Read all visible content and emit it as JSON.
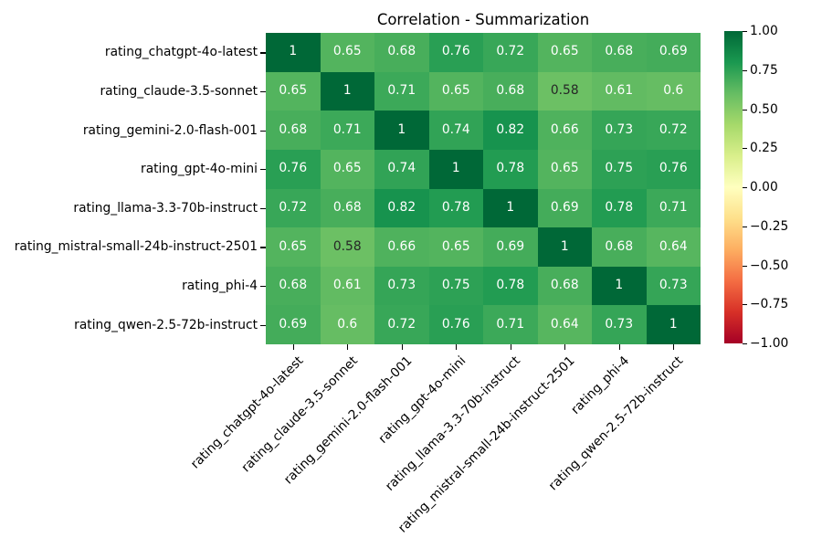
{
  "figure": {
    "background": "#ffffff"
  },
  "chart_data": {
    "type": "heatmap",
    "title": "Correlation - Summarization",
    "labels": [
      "rating_chatgpt-4o-latest",
      "rating_claude-3.5-sonnet",
      "rating_gemini-2.0-flash-001",
      "rating_gpt-4o-mini",
      "rating_llama-3.3-70b-instruct",
      "rating_mistral-small-24b-instruct-2501",
      "rating_phi-4",
      "rating_qwen-2.5-72b-instruct"
    ],
    "matrix": [
      [
        1,
        0.65,
        0.68,
        0.76,
        0.72,
        0.65,
        0.68,
        0.69
      ],
      [
        0.65,
        1,
        0.71,
        0.65,
        0.68,
        0.58,
        0.61,
        0.6
      ],
      [
        0.68,
        0.71,
        1,
        0.74,
        0.82,
        0.66,
        0.73,
        0.72
      ],
      [
        0.76,
        0.65,
        0.74,
        1,
        0.78,
        0.65,
        0.75,
        0.76
      ],
      [
        0.72,
        0.68,
        0.82,
        0.78,
        1,
        0.69,
        0.78,
        0.71
      ],
      [
        0.65,
        0.58,
        0.66,
        0.65,
        0.69,
        1,
        0.68,
        0.64
      ],
      [
        0.68,
        0.61,
        0.73,
        0.75,
        0.78,
        0.68,
        1,
        0.73
      ],
      [
        0.69,
        0.6,
        0.72,
        0.76,
        0.71,
        0.64,
        0.73,
        1
      ]
    ],
    "vmin": -1,
    "vmax": 1,
    "grid": false,
    "legend_position": "colorbar-right",
    "colormap_name": "RdYlGn",
    "colormap_stops": [
      "#a50026",
      "#d73027",
      "#f46d43",
      "#fdae61",
      "#fee08b",
      "#ffffbf",
      "#d9ef8b",
      "#a6d96a",
      "#66bd63",
      "#1a9850",
      "#006837"
    ],
    "colorbar_ticks": [
      {
        "value": 1,
        "label": "1.00"
      },
      {
        "value": 0.75,
        "label": "0.75"
      },
      {
        "value": 0.5,
        "label": "0.50"
      },
      {
        "value": 0.25,
        "label": "0.25"
      },
      {
        "value": 0,
        "label": "0.00"
      },
      {
        "value": -0.25,
        "label": "−0.25"
      },
      {
        "value": -0.5,
        "label": "−0.50"
      },
      {
        "value": -0.75,
        "label": "−0.75"
      },
      {
        "value": -1,
        "label": "−1.00"
      }
    ],
    "annotation_text_colors": {
      "on_dark_cell": "#ffffff",
      "on_light_cell": "#262626"
    },
    "axis_text_color": "#000000"
  }
}
